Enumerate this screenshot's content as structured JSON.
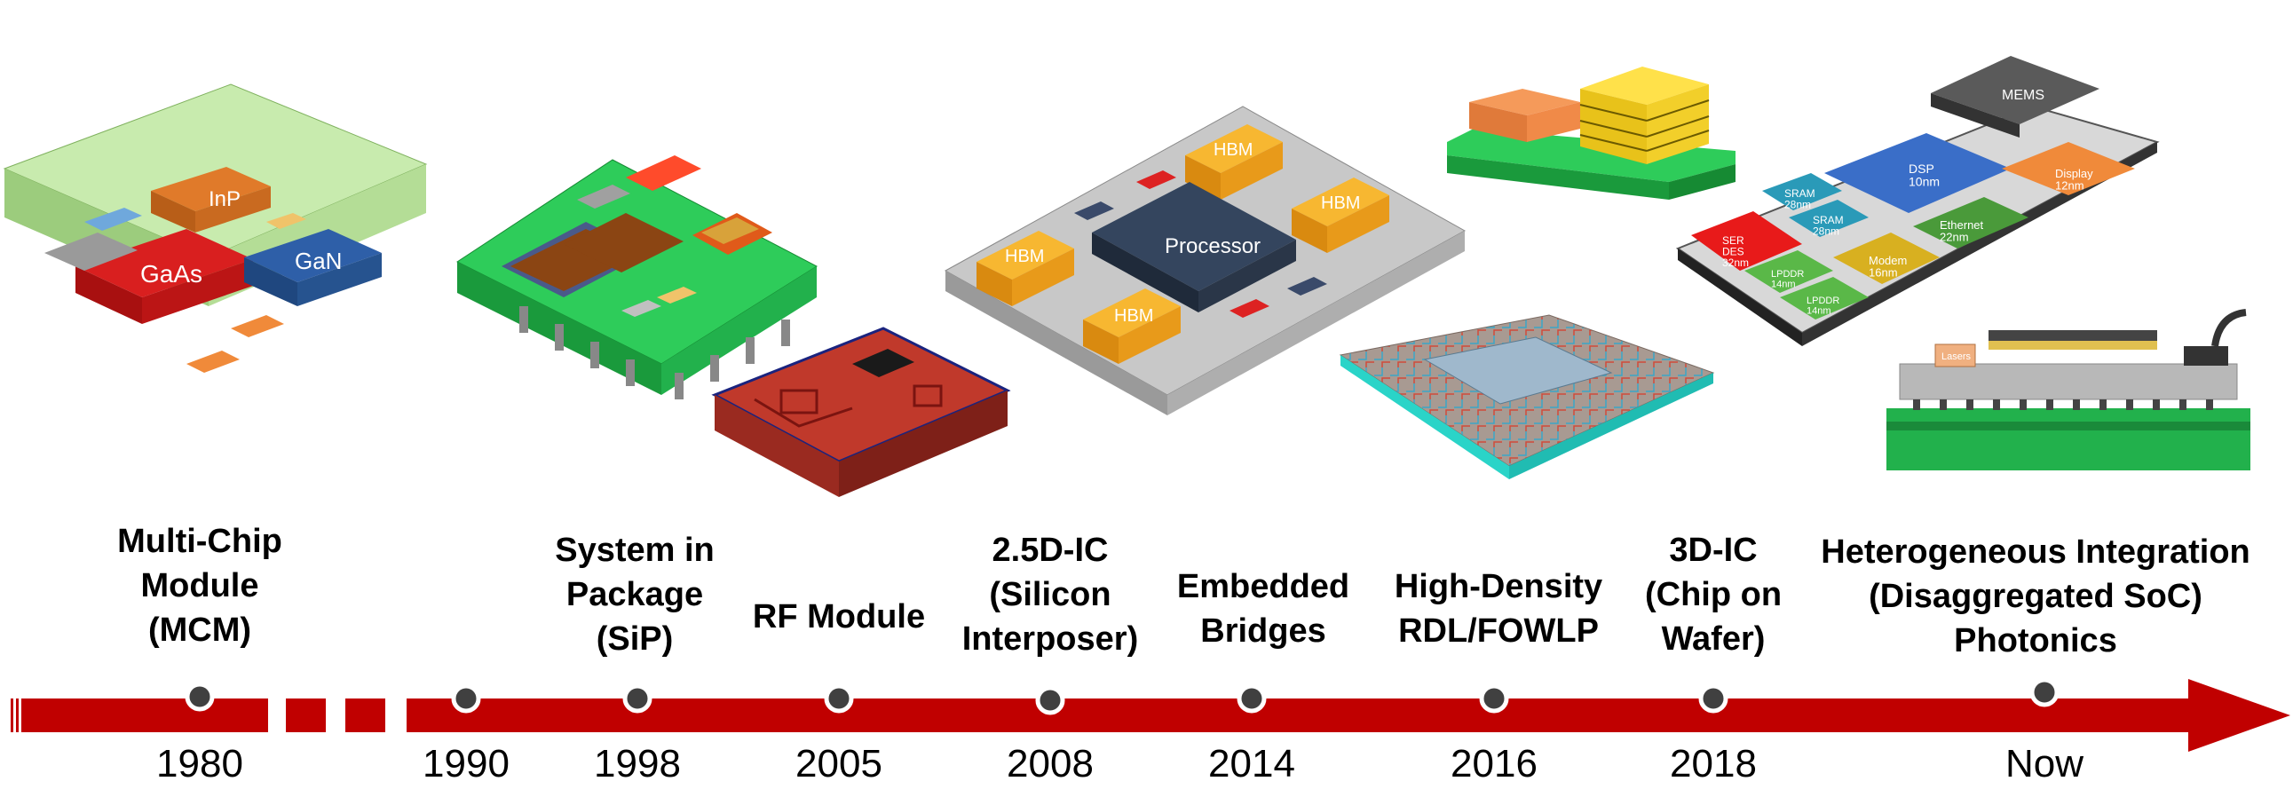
{
  "milestones": [
    {
      "id": "mcm",
      "label_lines": [
        "Multi-Chip",
        "Module",
        "(MCM)"
      ],
      "year": "1980"
    },
    {
      "id": "gap",
      "label_lines": [],
      "year": "1990"
    },
    {
      "id": "sip",
      "label_lines": [
        "System in",
        "Package",
        "(SiP)"
      ],
      "year": "1998"
    },
    {
      "id": "rf",
      "label_lines": [
        "RF Module"
      ],
      "year": "2005"
    },
    {
      "id": "interposer",
      "label_lines": [
        "2.5D-IC",
        "(Silicon",
        "Interposer)"
      ],
      "year": "2008"
    },
    {
      "id": "bridges",
      "label_lines": [
        "Embedded",
        "Bridges"
      ],
      "year": "2014"
    },
    {
      "id": "rdl",
      "label_lines": [
        "High-Density",
        "RDL/FOWLP"
      ],
      "year": "2016"
    },
    {
      "id": "3dic",
      "label_lines": [
        "3D-IC",
        "(Chip on",
        "Wafer)"
      ],
      "year": "2018"
    },
    {
      "id": "hi",
      "label_lines": [
        "Heterogeneous Integration",
        "(Disaggregated SoC)",
        "Photonics"
      ],
      "year": "Now"
    }
  ],
  "chip_labels": {
    "mcm": [
      "InP",
      "GaAs",
      "GaN"
    ],
    "interposer": [
      "HBM",
      "HBM",
      "HBM",
      "HBM",
      "Processor"
    ],
    "soc": [
      "MEMS",
      "DSP\n10nm",
      "Display\n12nm",
      "SRAM\n28nm",
      "SRAM\n28nm",
      "SER\nDES\n32nm",
      "Ethernet\n22nm",
      "Modem\n16nm",
      "LPDDR\n14nm",
      "LPDDR\n14nm"
    ],
    "photonics": [
      "Lasers"
    ]
  },
  "colors": {
    "arrow": "#c00000",
    "dot": "#404040",
    "mcm_board": "#a8d98a",
    "sip_board": "#22b14c",
    "interposer": "#b0b0b0",
    "hbm": "#f5a623",
    "processor": "#2f3b4c"
  }
}
